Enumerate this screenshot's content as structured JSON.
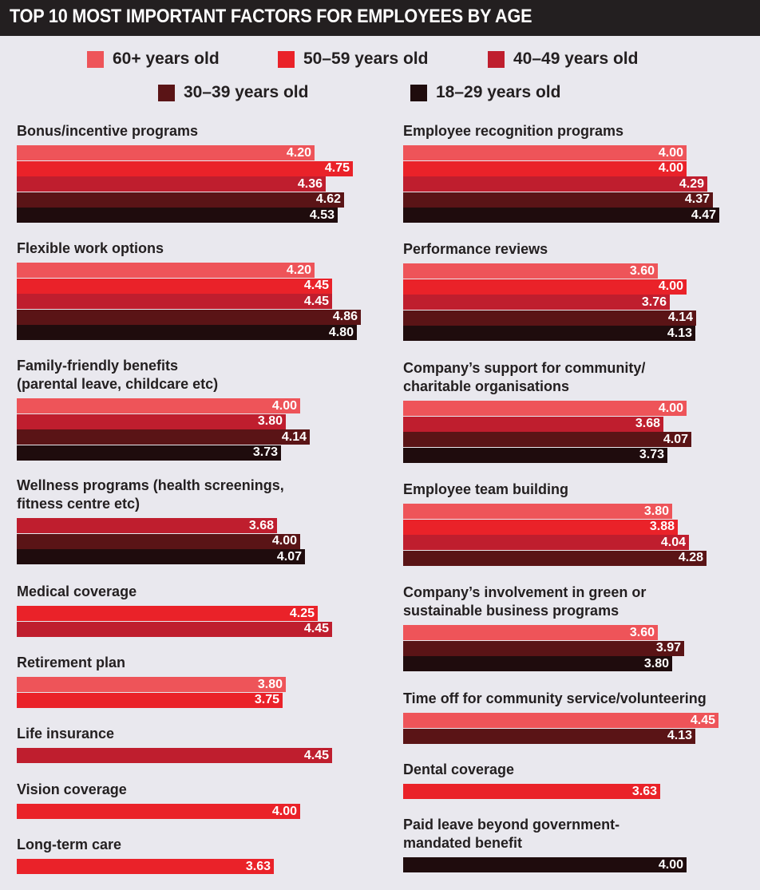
{
  "title": "TOP 10 MOST IMPORTANT FACTORS FOR EMPLOYEES BY AGE",
  "colors": {
    "background": "#e9e8ee",
    "title_bar": "#231f20",
    "60plus": "#ee5459",
    "50_59": "#ea2229",
    "40_49": "#bf1e2e",
    "30_39": "#5a1416",
    "18_29": "#1f0c0d"
  },
  "chart_data": {
    "type": "bar",
    "orientation": "horizontal",
    "title": "TOP 10 MOST IMPORTANT FACTORS FOR EMPLOYEES BY AGE",
    "xlim": [
      0,
      5
    ],
    "grid": false,
    "legend_position": "top",
    "series": [
      {
        "key": "60plus",
        "name": "60+ years old",
        "color": "#ee5459"
      },
      {
        "key": "50_59",
        "name": "50–59 years old",
        "color": "#ea2229"
      },
      {
        "key": "40_49",
        "name": "40–49 years old",
        "color": "#bf1e2e"
      },
      {
        "key": "30_39",
        "name": "30–39 years old",
        "color": "#5a1416"
      },
      {
        "key": "18_29",
        "name": "18–29 years old",
        "color": "#1f0c0d"
      }
    ],
    "columns": [
      [
        {
          "label": [
            "Bonus/incentive programs"
          ],
          "bars": [
            {
              "series": "60plus",
              "value": 4.2,
              "label": "4.20"
            },
            {
              "series": "50_59",
              "value": 4.75,
              "label": "4.75"
            },
            {
              "series": "40_49",
              "value": 4.36,
              "label": "4.36"
            },
            {
              "series": "30_39",
              "value": 4.62,
              "label": "4.62"
            },
            {
              "series": "18_29",
              "value": 4.53,
              "label": "4.53"
            }
          ]
        },
        {
          "label": [
            "Flexible work options"
          ],
          "bars": [
            {
              "series": "60plus",
              "value": 4.2,
              "label": "4.20"
            },
            {
              "series": "50_59",
              "value": 4.45,
              "label": "4.45"
            },
            {
              "series": "40_49",
              "value": 4.45,
              "label": "4.45"
            },
            {
              "series": "30_39",
              "value": 4.86,
              "label": "4.86"
            },
            {
              "series": "18_29",
              "value": 4.8,
              "label": "4.80"
            }
          ]
        },
        {
          "label": [
            "Family-friendly benefits",
            "(parental leave, childcare etc)"
          ],
          "bars": [
            {
              "series": "60plus",
              "value": 4.0,
              "label": "4.00"
            },
            {
              "series": "40_49",
              "value": 3.8,
              "label": "3.80"
            },
            {
              "series": "30_39",
              "value": 4.14,
              "label": "4.14"
            },
            {
              "series": "18_29",
              "value": 3.73,
              "label": "3.73"
            }
          ]
        },
        {
          "label": [
            "Wellness programs (health screenings,",
            "fitness centre etc)"
          ],
          "bars": [
            {
              "series": "40_49",
              "value": 3.68,
              "label": "3.68"
            },
            {
              "series": "30_39",
              "value": 4.0,
              "label": "4.00"
            },
            {
              "series": "18_29",
              "value": 4.07,
              "label": "4.07"
            }
          ]
        },
        {
          "label": [
            "Medical coverage"
          ],
          "bars": [
            {
              "series": "50_59",
              "value": 4.25,
              "label": "4.25"
            },
            {
              "series": "40_49",
              "value": 4.45,
              "label": "4.45"
            }
          ]
        },
        {
          "label": [
            "Retirement plan"
          ],
          "bars": [
            {
              "series": "60plus",
              "value": 3.8,
              "label": "3.80"
            },
            {
              "series": "50_59",
              "value": 3.75,
              "label": "3.75"
            }
          ]
        },
        {
          "label": [
            "Life insurance"
          ],
          "bars": [
            {
              "series": "40_49",
              "value": 4.45,
              "label": "4.45"
            }
          ]
        },
        {
          "label": [
            "Vision coverage"
          ],
          "bars": [
            {
              "series": "50_59",
              "value": 4.0,
              "label": "4.00"
            }
          ]
        },
        {
          "label": [
            "Long-term care"
          ],
          "bars": [
            {
              "series": "50_59",
              "value": 3.63,
              "label": "3.63"
            }
          ]
        }
      ],
      [
        {
          "label": [
            "Employee recognition programs"
          ],
          "bars": [
            {
              "series": "60plus",
              "value": 4.0,
              "label": "4.00"
            },
            {
              "series": "50_59",
              "value": 4.0,
              "label": "4.00"
            },
            {
              "series": "40_49",
              "value": 4.29,
              "label": "4.29"
            },
            {
              "series": "30_39",
              "value": 4.37,
              "label": "4.37"
            },
            {
              "series": "18_29",
              "value": 4.47,
              "label": "4.47"
            }
          ]
        },
        {
          "label": [
            "Performance reviews"
          ],
          "bars": [
            {
              "series": "60plus",
              "value": 3.6,
              "label": "3.60"
            },
            {
              "series": "50_59",
              "value": 4.0,
              "label": "4.00"
            },
            {
              "series": "40_49",
              "value": 3.76,
              "label": "3.76"
            },
            {
              "series": "30_39",
              "value": 4.14,
              "label": "4.14"
            },
            {
              "series": "18_29",
              "value": 4.13,
              "label": "4.13"
            }
          ]
        },
        {
          "label": [
            "Company’s support for community/",
            "charitable organisations"
          ],
          "bars": [
            {
              "series": "60plus",
              "value": 4.0,
              "label": "4.00"
            },
            {
              "series": "40_49",
              "value": 3.68,
              "label": "3.68"
            },
            {
              "series": "30_39",
              "value": 4.07,
              "label": "4.07"
            },
            {
              "series": "18_29",
              "value": 3.73,
              "label": "3.73"
            }
          ]
        },
        {
          "label": [
            "Employee team building"
          ],
          "bars": [
            {
              "series": "60plus",
              "value": 3.8,
              "label": "3.80"
            },
            {
              "series": "50_59",
              "value": 3.88,
              "label": "3.88"
            },
            {
              "series": "40_49",
              "value": 4.04,
              "label": "4.04"
            },
            {
              "series": "30_39",
              "value": 4.28,
              "label": "4.28"
            }
          ]
        },
        {
          "label": [
            "Company’s involvement in green or",
            "sustainable business programs"
          ],
          "bars": [
            {
              "series": "60plus",
              "value": 3.6,
              "label": "3.60"
            },
            {
              "series": "30_39",
              "value": 3.97,
              "label": "3.97"
            },
            {
              "series": "18_29",
              "value": 3.8,
              "label": "3.80"
            }
          ]
        },
        {
          "label": [
            "Time off for community service/volunteering"
          ],
          "bars": [
            {
              "series": "60plus",
              "value": 4.45,
              "label": "4.45"
            },
            {
              "series": "30_39",
              "value": 4.13,
              "label": "4.13"
            }
          ]
        },
        {
          "label": [
            "Dental coverage"
          ],
          "bars": [
            {
              "series": "50_59",
              "value": 3.63,
              "label": "3.63"
            }
          ]
        },
        {
          "label": [
            "Paid leave beyond government-",
            "mandated benefit"
          ],
          "bars": [
            {
              "series": "18_29",
              "value": 4.0,
              "label": "4.00"
            }
          ]
        }
      ]
    ]
  }
}
